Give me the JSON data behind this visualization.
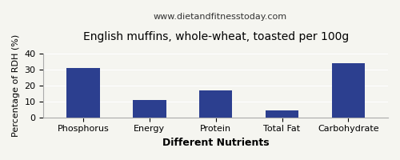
{
  "title": "English muffins, whole-wheat, toasted per 100g",
  "subtitle": "www.dietandfitnesstoday.com",
  "xlabel": "Different Nutrients",
  "ylabel": "Percentage of RDH (%)",
  "categories": [
    "Phosphorus",
    "Energy",
    "Protein",
    "Total Fat",
    "Carbohydrate"
  ],
  "values": [
    31,
    11,
    17,
    4.5,
    34
  ],
  "bar_color": "#2c3f8f",
  "ylim": [
    0,
    40
  ],
  "yticks": [
    0,
    10,
    20,
    30,
    40
  ],
  "background_color": "#f5f5f0",
  "title_fontsize": 10,
  "subtitle_fontsize": 8,
  "xlabel_fontsize": 9,
  "ylabel_fontsize": 8,
  "tick_fontsize": 8
}
